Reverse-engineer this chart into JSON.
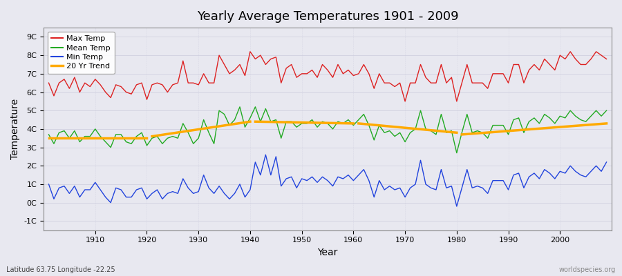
{
  "title": "Yearly Average Temperatures 1901 - 2009",
  "xlabel": "Year",
  "ylabel": "Temperature",
  "subtitle_left": "Latitude 63.75 Longitude -22.25",
  "subtitle_right": "worldspecies.org",
  "years": [
    1901,
    1902,
    1903,
    1904,
    1905,
    1906,
    1907,
    1908,
    1909,
    1910,
    1911,
    1912,
    1913,
    1914,
    1915,
    1916,
    1917,
    1918,
    1919,
    1920,
    1921,
    1922,
    1923,
    1924,
    1925,
    1926,
    1927,
    1928,
    1929,
    1930,
    1931,
    1932,
    1933,
    1934,
    1935,
    1936,
    1937,
    1938,
    1939,
    1940,
    1941,
    1942,
    1943,
    1944,
    1945,
    1946,
    1947,
    1948,
    1949,
    1950,
    1951,
    1952,
    1953,
    1954,
    1955,
    1956,
    1957,
    1958,
    1959,
    1960,
    1961,
    1962,
    1963,
    1964,
    1965,
    1966,
    1967,
    1968,
    1969,
    1970,
    1971,
    1972,
    1973,
    1974,
    1975,
    1976,
    1977,
    1978,
    1979,
    1980,
    1981,
    1982,
    1983,
    1984,
    1985,
    1986,
    1987,
    1988,
    1989,
    1990,
    1991,
    1992,
    1993,
    1994,
    1995,
    1996,
    1997,
    1998,
    1999,
    2000,
    2001,
    2002,
    2003,
    2004,
    2005,
    2006,
    2007,
    2008,
    2009
  ],
  "max_temp": [
    6.5,
    5.8,
    6.5,
    6.7,
    6.2,
    6.8,
    6.0,
    6.5,
    6.3,
    6.7,
    6.4,
    6.0,
    5.7,
    6.4,
    6.3,
    6.0,
    5.9,
    6.4,
    6.5,
    5.6,
    6.4,
    6.5,
    6.4,
    6.0,
    6.4,
    6.5,
    7.7,
    6.5,
    6.5,
    6.4,
    7.0,
    6.5,
    6.5,
    8.0,
    7.5,
    7.0,
    7.2,
    7.5,
    6.9,
    8.2,
    7.8,
    8.0,
    7.5,
    7.8,
    7.9,
    6.5,
    7.3,
    7.5,
    6.8,
    7.0,
    7.0,
    7.2,
    6.8,
    7.5,
    7.2,
    6.8,
    7.5,
    7.0,
    7.2,
    6.9,
    7.0,
    7.5,
    7.0,
    6.2,
    7.0,
    6.5,
    6.5,
    6.3,
    6.5,
    5.5,
    6.5,
    6.5,
    7.5,
    6.8,
    6.5,
    6.5,
    7.5,
    6.5,
    6.8,
    5.5,
    6.5,
    7.5,
    6.5,
    6.5,
    6.5,
    6.2,
    7.0,
    7.0,
    7.0,
    6.5,
    7.5,
    7.5,
    6.5,
    7.2,
    7.5,
    7.2,
    7.8,
    7.5,
    7.2,
    8.0,
    7.8,
    8.2,
    7.8,
    7.5,
    7.5,
    7.8,
    8.2,
    8.0,
    7.8
  ],
  "mean_temp": [
    3.7,
    3.2,
    3.8,
    3.9,
    3.5,
    3.9,
    3.3,
    3.6,
    3.6,
    4.0,
    3.6,
    3.3,
    3.0,
    3.7,
    3.7,
    3.3,
    3.2,
    3.6,
    3.8,
    3.1,
    3.5,
    3.6,
    3.2,
    3.5,
    3.6,
    3.5,
    4.3,
    3.8,
    3.2,
    3.5,
    4.5,
    3.8,
    3.2,
    5.0,
    4.8,
    4.2,
    4.5,
    5.2,
    4.1,
    4.6,
    5.2,
    4.4,
    5.1,
    4.4,
    4.5,
    3.5,
    4.4,
    4.4,
    4.1,
    4.3,
    4.3,
    4.5,
    4.1,
    4.4,
    4.3,
    4.0,
    4.4,
    4.3,
    4.5,
    4.2,
    4.5,
    4.8,
    4.2,
    3.4,
    4.2,
    3.8,
    3.9,
    3.6,
    3.8,
    3.3,
    3.8,
    4.0,
    5.0,
    4.0,
    3.9,
    3.7,
    4.8,
    3.8,
    3.9,
    2.7,
    3.8,
    4.8,
    3.8,
    3.9,
    3.8,
    3.5,
    4.2,
    4.2,
    4.2,
    3.7,
    4.5,
    4.6,
    3.8,
    4.4,
    4.6,
    4.3,
    4.8,
    4.6,
    4.3,
    4.7,
    4.6,
    5.0,
    4.7,
    4.5,
    4.4,
    4.7,
    5.0,
    4.7,
    5.0
  ],
  "min_temp": [
    1.0,
    0.2,
    0.8,
    0.9,
    0.5,
    0.9,
    0.3,
    0.7,
    0.7,
    1.1,
    0.7,
    0.3,
    0.0,
    0.8,
    0.7,
    0.3,
    0.3,
    0.7,
    0.8,
    0.2,
    0.5,
    0.7,
    0.2,
    0.5,
    0.6,
    0.5,
    1.3,
    0.8,
    0.5,
    0.6,
    1.5,
    0.8,
    0.5,
    0.9,
    0.5,
    0.2,
    0.5,
    1.0,
    0.3,
    0.7,
    2.2,
    1.5,
    2.6,
    1.5,
    2.5,
    0.9,
    1.3,
    1.4,
    0.8,
    1.3,
    1.2,
    1.4,
    1.1,
    1.4,
    1.2,
    0.9,
    1.4,
    1.3,
    1.5,
    1.2,
    1.5,
    1.8,
    1.2,
    0.3,
    1.2,
    0.7,
    0.9,
    0.7,
    0.8,
    0.3,
    0.8,
    1.0,
    2.3,
    1.0,
    0.8,
    0.7,
    1.8,
    0.8,
    0.9,
    -0.2,
    0.8,
    1.8,
    0.8,
    0.9,
    0.8,
    0.5,
    1.2,
    1.2,
    1.2,
    0.7,
    1.5,
    1.6,
    0.8,
    1.4,
    1.6,
    1.3,
    1.8,
    1.6,
    1.3,
    1.7,
    1.6,
    2.0,
    1.7,
    1.5,
    1.4,
    1.7,
    2.0,
    1.7,
    2.2
  ],
  "trend_segments": [
    {
      "x": [
        1901,
        1920
      ],
      "y": [
        3.5,
        3.5
      ]
    },
    {
      "x": [
        1921,
        1940
      ],
      "y": [
        3.6,
        4.4
      ]
    },
    {
      "x": [
        1941,
        1960
      ],
      "y": [
        4.4,
        4.3
      ]
    },
    {
      "x": [
        1961,
        1980
      ],
      "y": [
        4.3,
        3.8
      ]
    },
    {
      "x": [
        1981,
        2009
      ],
      "y": [
        3.7,
        4.3
      ]
    }
  ],
  "color_max": "#dd2222",
  "color_mean": "#22aa22",
  "color_min": "#2244dd",
  "color_trend": "#ffaa00",
  "bg_color": "#e8e8f0",
  "plot_bg_color": "#e8e8f0",
  "grid_color": "#ccccdd",
  "ylim": [
    -1.5,
    9.5
  ],
  "yticks": [
    -1,
    0,
    1,
    2,
    3,
    4,
    5,
    6,
    7,
    8,
    9
  ],
  "ytick_labels": [
    "-1C",
    "0C",
    "1C",
    "2C",
    "3C",
    "4C",
    "5C",
    "6C",
    "7C",
    "8C",
    "9C"
  ],
  "xlim": [
    1900,
    2010
  ],
  "legend_labels": [
    "Max Temp",
    "Mean Temp",
    "Min Temp",
    "20 Yr Trend"
  ],
  "legend_colors": [
    "#dd2222",
    "#22aa22",
    "#2244dd",
    "#ffaa00"
  ]
}
